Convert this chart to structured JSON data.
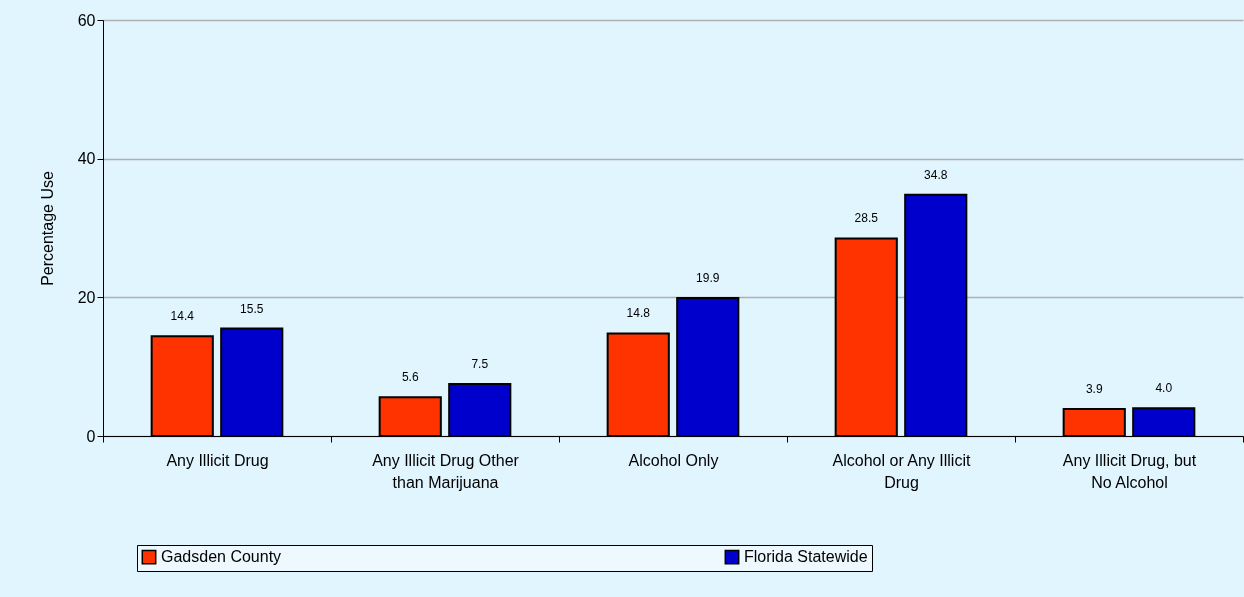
{
  "chart_data": {
    "type": "bar",
    "ylabel": "Percentage Use",
    "categories": [
      "Any Illicit Drug",
      "Any Illicit Drug Other than Marijuana",
      "Alcohol Only",
      "Alcohol or Any Illicit Drug",
      "Any Illicit Drug, but No Alcohol"
    ],
    "series": [
      {
        "name": "Gadsden County",
        "color": "#ff3300",
        "values": [
          14.4,
          5.6,
          14.8,
          28.5,
          3.9
        ],
        "value_labels": [
          "14.4",
          "5.6",
          "14.8",
          "28.5",
          "3.9"
        ]
      },
      {
        "name": "Florida Statewide",
        "color": "#0000cc",
        "values": [
          15.5,
          7.5,
          19.9,
          34.8,
          4.0
        ],
        "value_labels": [
          "15.5",
          "7.5",
          "19.9",
          "34.8",
          "4.0"
        ]
      }
    ],
    "ylim": [
      0,
      60
    ],
    "yticks": [
      0,
      20,
      40,
      60
    ],
    "grid": "y",
    "legend": "bottom"
  }
}
